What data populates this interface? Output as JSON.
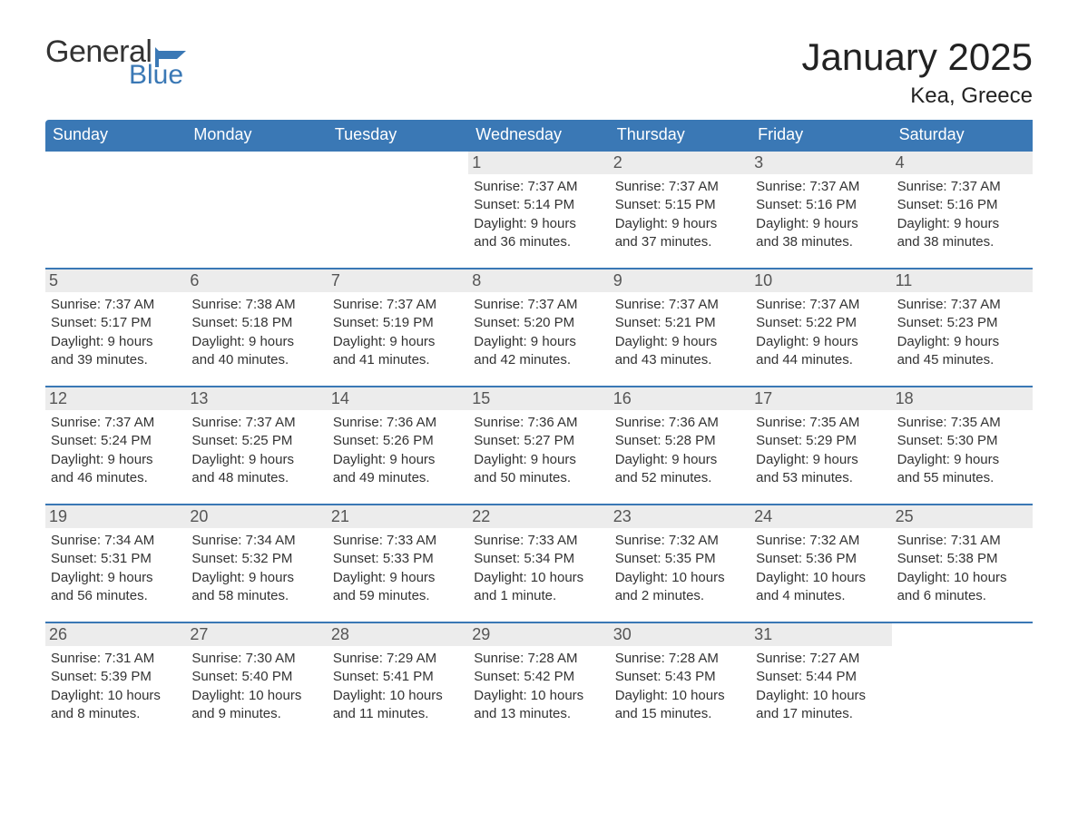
{
  "brand": {
    "word1": "General",
    "word2": "Blue",
    "flag_color": "#3a78b5",
    "text_color": "#333333"
  },
  "title": "January 2025",
  "location": "Kea, Greece",
  "colors": {
    "header_bg": "#3a78b5",
    "header_text": "#ffffff",
    "daynum_bg": "#ececec",
    "border": "#3a78b5",
    "body_text": "#333333",
    "background": "#ffffff"
  },
  "fonts": {
    "title_size": 42,
    "location_size": 24,
    "header_size": 18,
    "daynum_size": 18,
    "body_size": 15
  },
  "columns": [
    "Sunday",
    "Monday",
    "Tuesday",
    "Wednesday",
    "Thursday",
    "Friday",
    "Saturday"
  ],
  "weeks": [
    [
      {
        "blank": true
      },
      {
        "blank": true
      },
      {
        "blank": true
      },
      {
        "day": "1",
        "sunrise": "Sunrise: 7:37 AM",
        "sunset": "Sunset: 5:14 PM",
        "daylight1": "Daylight: 9 hours",
        "daylight2": "and 36 minutes."
      },
      {
        "day": "2",
        "sunrise": "Sunrise: 7:37 AM",
        "sunset": "Sunset: 5:15 PM",
        "daylight1": "Daylight: 9 hours",
        "daylight2": "and 37 minutes."
      },
      {
        "day": "3",
        "sunrise": "Sunrise: 7:37 AM",
        "sunset": "Sunset: 5:16 PM",
        "daylight1": "Daylight: 9 hours",
        "daylight2": "and 38 minutes."
      },
      {
        "day": "4",
        "sunrise": "Sunrise: 7:37 AM",
        "sunset": "Sunset: 5:16 PM",
        "daylight1": "Daylight: 9 hours",
        "daylight2": "and 38 minutes."
      }
    ],
    [
      {
        "day": "5",
        "sunrise": "Sunrise: 7:37 AM",
        "sunset": "Sunset: 5:17 PM",
        "daylight1": "Daylight: 9 hours",
        "daylight2": "and 39 minutes."
      },
      {
        "day": "6",
        "sunrise": "Sunrise: 7:38 AM",
        "sunset": "Sunset: 5:18 PM",
        "daylight1": "Daylight: 9 hours",
        "daylight2": "and 40 minutes."
      },
      {
        "day": "7",
        "sunrise": "Sunrise: 7:37 AM",
        "sunset": "Sunset: 5:19 PM",
        "daylight1": "Daylight: 9 hours",
        "daylight2": "and 41 minutes."
      },
      {
        "day": "8",
        "sunrise": "Sunrise: 7:37 AM",
        "sunset": "Sunset: 5:20 PM",
        "daylight1": "Daylight: 9 hours",
        "daylight2": "and 42 minutes."
      },
      {
        "day": "9",
        "sunrise": "Sunrise: 7:37 AM",
        "sunset": "Sunset: 5:21 PM",
        "daylight1": "Daylight: 9 hours",
        "daylight2": "and 43 minutes."
      },
      {
        "day": "10",
        "sunrise": "Sunrise: 7:37 AM",
        "sunset": "Sunset: 5:22 PM",
        "daylight1": "Daylight: 9 hours",
        "daylight2": "and 44 minutes."
      },
      {
        "day": "11",
        "sunrise": "Sunrise: 7:37 AM",
        "sunset": "Sunset: 5:23 PM",
        "daylight1": "Daylight: 9 hours",
        "daylight2": "and 45 minutes."
      }
    ],
    [
      {
        "day": "12",
        "sunrise": "Sunrise: 7:37 AM",
        "sunset": "Sunset: 5:24 PM",
        "daylight1": "Daylight: 9 hours",
        "daylight2": "and 46 minutes."
      },
      {
        "day": "13",
        "sunrise": "Sunrise: 7:37 AM",
        "sunset": "Sunset: 5:25 PM",
        "daylight1": "Daylight: 9 hours",
        "daylight2": "and 48 minutes."
      },
      {
        "day": "14",
        "sunrise": "Sunrise: 7:36 AM",
        "sunset": "Sunset: 5:26 PM",
        "daylight1": "Daylight: 9 hours",
        "daylight2": "and 49 minutes."
      },
      {
        "day": "15",
        "sunrise": "Sunrise: 7:36 AM",
        "sunset": "Sunset: 5:27 PM",
        "daylight1": "Daylight: 9 hours",
        "daylight2": "and 50 minutes."
      },
      {
        "day": "16",
        "sunrise": "Sunrise: 7:36 AM",
        "sunset": "Sunset: 5:28 PM",
        "daylight1": "Daylight: 9 hours",
        "daylight2": "and 52 minutes."
      },
      {
        "day": "17",
        "sunrise": "Sunrise: 7:35 AM",
        "sunset": "Sunset: 5:29 PM",
        "daylight1": "Daylight: 9 hours",
        "daylight2": "and 53 minutes."
      },
      {
        "day": "18",
        "sunrise": "Sunrise: 7:35 AM",
        "sunset": "Sunset: 5:30 PM",
        "daylight1": "Daylight: 9 hours",
        "daylight2": "and 55 minutes."
      }
    ],
    [
      {
        "day": "19",
        "sunrise": "Sunrise: 7:34 AM",
        "sunset": "Sunset: 5:31 PM",
        "daylight1": "Daylight: 9 hours",
        "daylight2": "and 56 minutes."
      },
      {
        "day": "20",
        "sunrise": "Sunrise: 7:34 AM",
        "sunset": "Sunset: 5:32 PM",
        "daylight1": "Daylight: 9 hours",
        "daylight2": "and 58 minutes."
      },
      {
        "day": "21",
        "sunrise": "Sunrise: 7:33 AM",
        "sunset": "Sunset: 5:33 PM",
        "daylight1": "Daylight: 9 hours",
        "daylight2": "and 59 minutes."
      },
      {
        "day": "22",
        "sunrise": "Sunrise: 7:33 AM",
        "sunset": "Sunset: 5:34 PM",
        "daylight1": "Daylight: 10 hours",
        "daylight2": "and 1 minute."
      },
      {
        "day": "23",
        "sunrise": "Sunrise: 7:32 AM",
        "sunset": "Sunset: 5:35 PM",
        "daylight1": "Daylight: 10 hours",
        "daylight2": "and 2 minutes."
      },
      {
        "day": "24",
        "sunrise": "Sunrise: 7:32 AM",
        "sunset": "Sunset: 5:36 PM",
        "daylight1": "Daylight: 10 hours",
        "daylight2": "and 4 minutes."
      },
      {
        "day": "25",
        "sunrise": "Sunrise: 7:31 AM",
        "sunset": "Sunset: 5:38 PM",
        "daylight1": "Daylight: 10 hours",
        "daylight2": "and 6 minutes."
      }
    ],
    [
      {
        "day": "26",
        "sunrise": "Sunrise: 7:31 AM",
        "sunset": "Sunset: 5:39 PM",
        "daylight1": "Daylight: 10 hours",
        "daylight2": "and 8 minutes."
      },
      {
        "day": "27",
        "sunrise": "Sunrise: 7:30 AM",
        "sunset": "Sunset: 5:40 PM",
        "daylight1": "Daylight: 10 hours",
        "daylight2": "and 9 minutes."
      },
      {
        "day": "28",
        "sunrise": "Sunrise: 7:29 AM",
        "sunset": "Sunset: 5:41 PM",
        "daylight1": "Daylight: 10 hours",
        "daylight2": "and 11 minutes."
      },
      {
        "day": "29",
        "sunrise": "Sunrise: 7:28 AM",
        "sunset": "Sunset: 5:42 PM",
        "daylight1": "Daylight: 10 hours",
        "daylight2": "and 13 minutes."
      },
      {
        "day": "30",
        "sunrise": "Sunrise: 7:28 AM",
        "sunset": "Sunset: 5:43 PM",
        "daylight1": "Daylight: 10 hours",
        "daylight2": "and 15 minutes."
      },
      {
        "day": "31",
        "sunrise": "Sunrise: 7:27 AM",
        "sunset": "Sunset: 5:44 PM",
        "daylight1": "Daylight: 10 hours",
        "daylight2": "and 17 minutes."
      },
      {
        "blank": true
      }
    ]
  ]
}
